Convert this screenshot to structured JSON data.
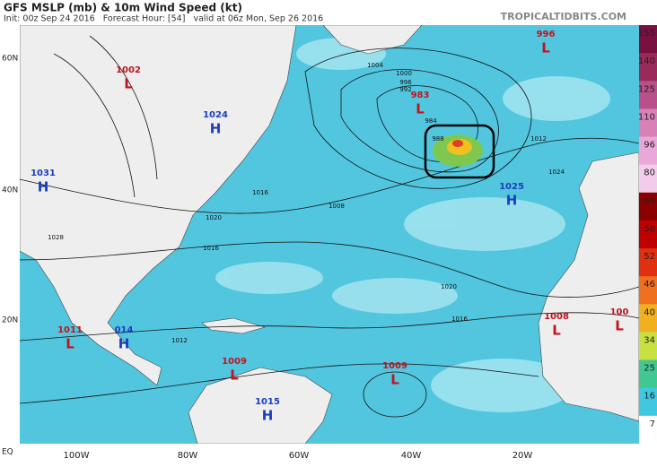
{
  "header": {
    "title": "GFS MSLP (mb) & 10m Wind Speed (kt)",
    "subtitle": "Init: 00z Sep 24 2016   Forecast Hour: [54]   valid at 06z Mon, Sep 26 2016",
    "source": "TROPICALTIDBITS.COM"
  },
  "colorbar": {
    "labels": [
      155,
      140,
      125,
      110,
      96,
      80,
      64,
      58,
      52,
      46,
      40,
      34,
      25,
      16,
      7
    ]
  },
  "latitude_labels": [
    "60N",
    "40N",
    "20N",
    "EQ"
  ],
  "longitude_labels": [
    "100W",
    "80W",
    "60W",
    "40W",
    "20W"
  ],
  "pressure_centers": [
    {
      "kind": "L",
      "value": "1002"
    },
    {
      "kind": "H",
      "value": "1024"
    },
    {
      "kind": "H",
      "value": "1031"
    },
    {
      "kind": "L",
      "value": "983"
    },
    {
      "kind": "L",
      "value": "996"
    },
    {
      "kind": "H",
      "value": "1025"
    },
    {
      "kind": "L",
      "value": "1011"
    },
    {
      "kind": "H",
      "value": "014"
    },
    {
      "kind": "L",
      "value": "1009"
    },
    {
      "kind": "L",
      "value": "1009"
    },
    {
      "kind": "H",
      "value": "1015"
    },
    {
      "kind": "L",
      "value": "1008"
    },
    {
      "kind": "L",
      "value": "100"
    }
  ],
  "isobar_labels": [
    "1004",
    "1000",
    "996",
    "992",
    "988",
    "984",
    "1012",
    "1016",
    "1020",
    "1008",
    "1024",
    "1028",
    "1016",
    "1020",
    "1012",
    "1016"
  ]
}
